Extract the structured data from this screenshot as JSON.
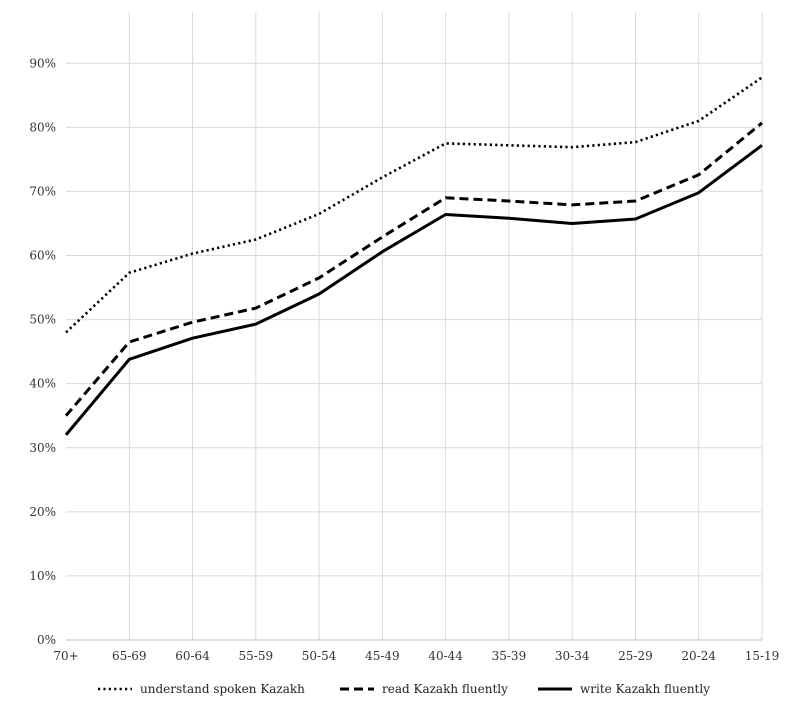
{
  "chart_data": {
    "type": "line",
    "title": "",
    "xlabel": "",
    "ylabel": "",
    "categories": [
      "70+",
      "65-69",
      "60-64",
      "55-59",
      "50-54",
      "45-49",
      "40-44",
      "35-39",
      "30-34",
      "25-29",
      "20-24",
      "15-19"
    ],
    "y_ticks": [
      "0%",
      "10%",
      "20%",
      "30%",
      "40%",
      "50%",
      "60%",
      "70%",
      "80%",
      "90%"
    ],
    "ylim": [
      0,
      98
    ],
    "y_unit": "percent",
    "grid": true,
    "legend_position": "bottom",
    "series": [
      {
        "name": "understand spoken Kazakh",
        "style": "dotted",
        "color": "#000000",
        "values": [
          48,
          57.3,
          60.3,
          62.5,
          66.5,
          72.2,
          77.5,
          77.2,
          76.9,
          77.7,
          81.0,
          87.8
        ]
      },
      {
        "name": "read Kazakh fluently",
        "style": "dashed",
        "color": "#000000",
        "values": [
          35,
          46.5,
          49.6,
          51.8,
          56.5,
          62.9,
          69.0,
          68.5,
          67.9,
          68.5,
          72.6,
          80.7
        ]
      },
      {
        "name": "write Kazakh fluently",
        "style": "solid",
        "color": "#000000",
        "values": [
          32,
          43.8,
          47.1,
          49.3,
          54.0,
          60.6,
          66.4,
          65.8,
          65.0,
          65.7,
          69.8,
          77.2
        ]
      }
    ]
  }
}
